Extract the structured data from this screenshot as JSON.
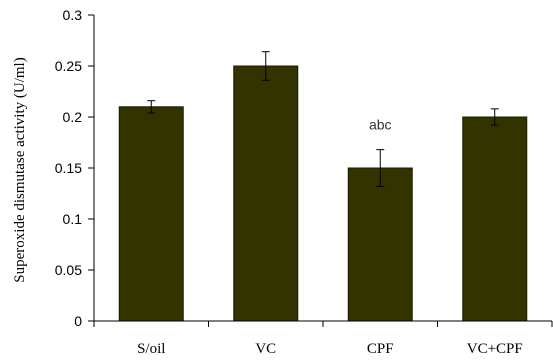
{
  "chart_data": {
    "type": "bar",
    "title": "",
    "xlabel": "",
    "ylabel": "Superoxide dismutase activity  (U/ml)",
    "categories": [
      "S/oil",
      "VC",
      "CPF",
      "VC+CPF"
    ],
    "values": [
      0.21,
      0.25,
      0.15,
      0.2
    ],
    "errors": [
      0.006,
      0.014,
      0.018,
      0.008
    ],
    "annotations": [
      "",
      "",
      "abc",
      ""
    ],
    "ylim": [
      0,
      0.3
    ],
    "yticks": [
      "0",
      "0.05",
      "0.1",
      "0.15",
      "0.2",
      "0.25",
      "0.3"
    ],
    "grid": false,
    "legend": "none",
    "bar_color": "#333300",
    "error_bar_color": "#000000"
  }
}
